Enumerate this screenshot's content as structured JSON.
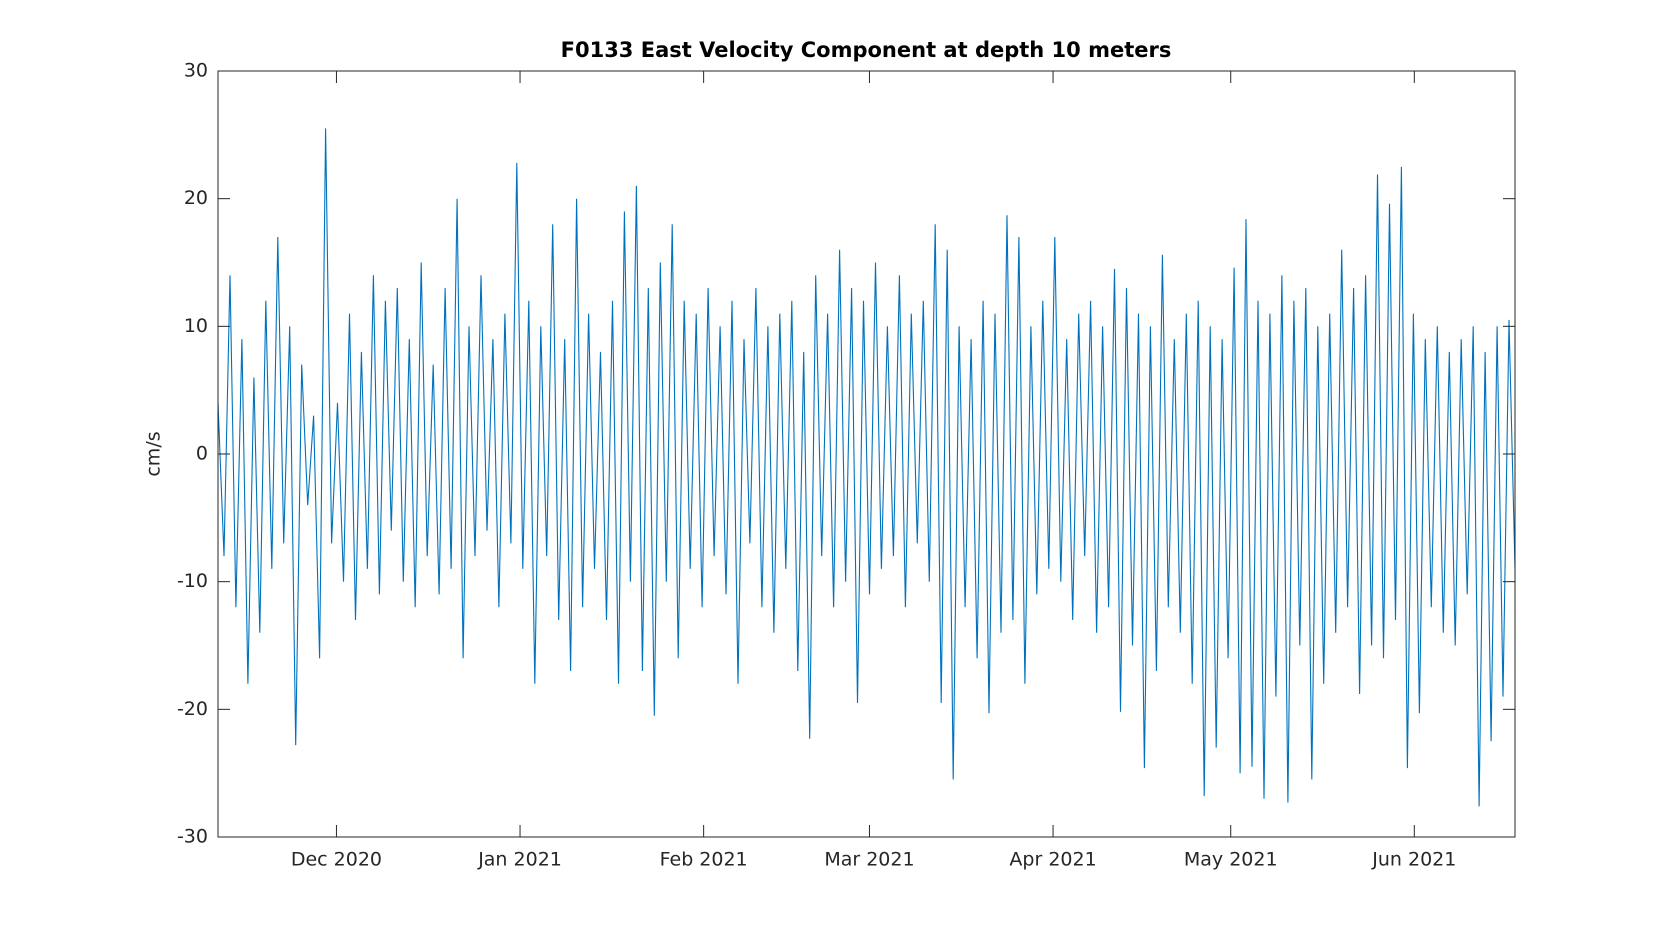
{
  "chart_data": {
    "type": "line",
    "title": "F0133 East Velocity Component at depth 10 meters",
    "y_label": "cm/s",
    "xlim": [
      "2020-11-11",
      "2021-06-18"
    ],
    "xticks": [
      {
        "value": "2020-12-01",
        "label": "Dec 2020"
      },
      {
        "value": "2021-01-01",
        "label": "Jan 2021"
      },
      {
        "value": "2021-02-01",
        "label": "Feb 2021"
      },
      {
        "value": "2021-03-01",
        "label": "Mar 2021"
      },
      {
        "value": "2021-04-01",
        "label": "Apr 2021"
      },
      {
        "value": "2021-05-01",
        "label": "May 2021"
      },
      {
        "value": "2021-06-01",
        "label": "Jun 2021"
      }
    ],
    "ylim": [
      -30,
      30
    ],
    "yticks": [
      -30,
      -20,
      -10,
      0,
      10,
      20,
      30
    ],
    "series": [
      {
        "name": "East velocity",
        "color": "#0072bd",
        "values": [
          4,
          -8,
          14,
          -12,
          9,
          -18,
          6,
          -14,
          12,
          -9,
          17,
          -7,
          10,
          -22.8,
          7,
          -4,
          3,
          -16,
          25.5,
          -7,
          4,
          -10,
          11,
          -13,
          8,
          -9,
          14,
          -11,
          12,
          -6,
          13,
          -10,
          9,
          -12,
          15,
          -8,
          7,
          -11,
          13,
          -9,
          20,
          -16,
          10,
          -8,
          14,
          -6,
          9,
          -12,
          11,
          -7,
          22.8,
          -9,
          12,
          -18,
          10,
          -8,
          18,
          -13,
          9,
          -17,
          20,
          -12,
          11,
          -9,
          8,
          -13,
          12,
          -18,
          19,
          -10,
          21,
          -17,
          13,
          -20.5,
          15,
          -10,
          18,
          -16,
          12,
          -9,
          11,
          -12,
          13,
          -8,
          10,
          -11,
          12,
          -18,
          9,
          -7,
          13,
          -12,
          10,
          -14,
          11,
          -9,
          12,
          -17,
          8,
          -22.3,
          14,
          -8,
          11,
          -12,
          16,
          -10,
          13,
          -19.5,
          12,
          -11,
          15,
          -9,
          10,
          -8,
          14,
          -12,
          11,
          -7,
          12,
          -10,
          18,
          -19.5,
          16,
          -25.5,
          10,
          -12,
          9,
          -16,
          12,
          -20.3,
          11,
          -14,
          18.7,
          -13,
          17,
          -18,
          10,
          -11,
          12,
          -9,
          17,
          -10,
          9,
          -13,
          11,
          -8,
          12,
          -14,
          10,
          -12,
          14.5,
          -20.2,
          13,
          -15,
          11,
          -24.6,
          10,
          -17,
          15.6,
          -12,
          9,
          -14,
          11,
          -18,
          12,
          -26.8,
          10,
          -23,
          9,
          -16,
          14.6,
          -25,
          18.4,
          -24.5,
          12,
          -27,
          11,
          -19,
          14,
          -27.3,
          12,
          -15,
          13,
          -25.5,
          10,
          -18,
          11,
          -14,
          16,
          -12,
          13,
          -18.8,
          14,
          -15,
          21.9,
          -16,
          19.6,
          -13,
          22.5,
          -24.6,
          11,
          -20.3,
          9,
          -12,
          10,
          -14,
          8,
          -15,
          9,
          -11,
          10,
          -27.6,
          8,
          -22.5,
          10,
          -19,
          10.5,
          -9
        ]
      }
    ]
  }
}
